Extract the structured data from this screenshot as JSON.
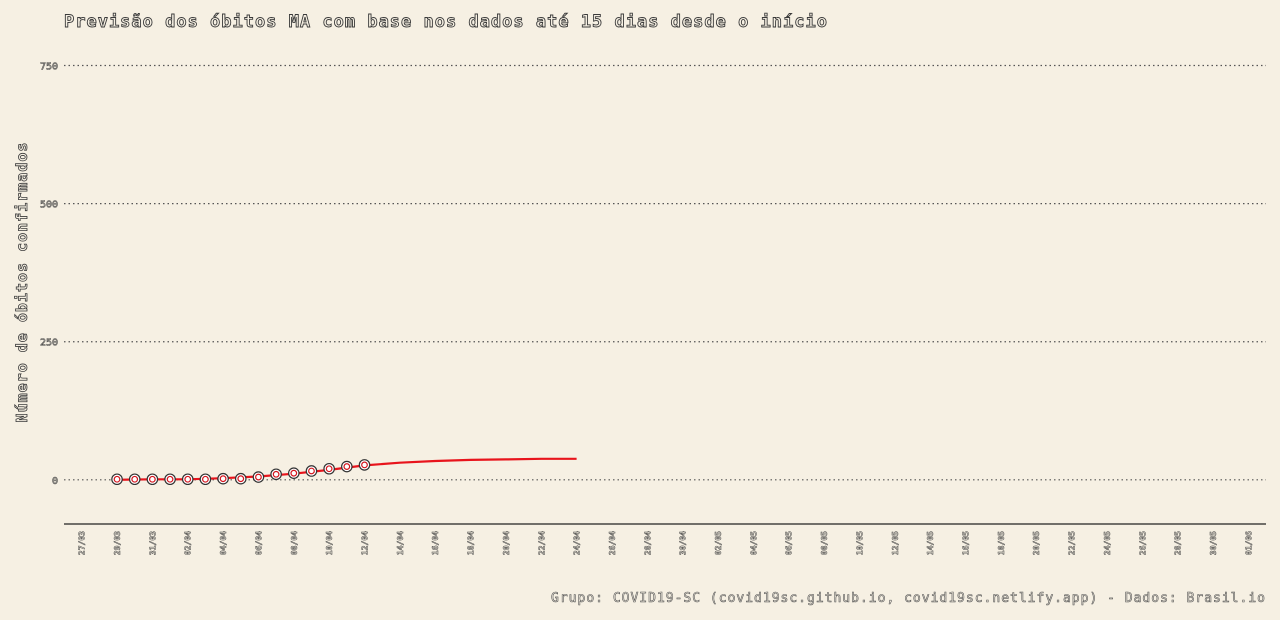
{
  "chart_data": {
    "type": "line",
    "title": "Previsão dos óbitos MA com base nos dados até 15 dias desde o início",
    "xlabel": "",
    "ylabel": "Número de óbitos confirmados",
    "caption": "Grupo: COVID19-SC (covid19sc.github.io, covid19sc.netlify.app)   -   Dados: Brasil.io",
    "ylim": [
      -80,
      760
    ],
    "yticks": [
      0,
      250,
      500,
      750
    ],
    "ytick_labels": [
      "0",
      "250",
      "500",
      "750"
    ],
    "x_ticks": [
      "27/03",
      "29/03",
      "31/03",
      "02/04",
      "04/04",
      "06/04",
      "08/04",
      "10/04",
      "12/04",
      "14/04",
      "16/04",
      "18/04",
      "20/04",
      "22/04",
      "24/04",
      "26/04",
      "28/04",
      "30/04",
      "02/05",
      "04/05",
      "06/05",
      "08/05",
      "10/05",
      "12/05",
      "14/05",
      "16/05",
      "18/05",
      "20/05",
      "22/05",
      "24/05",
      "26/05",
      "28/05",
      "30/05",
      "01/06"
    ],
    "xlim": [
      "26/03",
      "02/06"
    ],
    "grid": true,
    "legend": "none",
    "series": [
      {
        "type": "scatter",
        "color": "#333333",
        "x": [
          "29/03",
          "30/03",
          "31/03",
          "01/04",
          "02/04",
          "03/04",
          "04/04",
          "05/04",
          "06/04",
          "07/04",
          "08/04",
          "09/04",
          "10/04",
          "11/04",
          "12/04"
        ],
        "y": [
          1,
          1,
          1,
          1,
          1,
          1,
          2,
          2,
          5,
          10,
          12,
          16,
          20,
          24,
          27
        ]
      },
      {
        "type": "line",
        "color": "#e8141c",
        "x": [
          "29/03",
          "31/03",
          "02/04",
          "04/04",
          "06/04",
          "08/04",
          "10/04",
          "12/04",
          "14/04",
          "16/04",
          "18/04",
          "20/04",
          "22/04",
          "24/04"
        ],
        "y": [
          0,
          1,
          1,
          3,
          6,
          11,
          18,
          26,
          31,
          34,
          36,
          37,
          38,
          38
        ]
      }
    ]
  }
}
